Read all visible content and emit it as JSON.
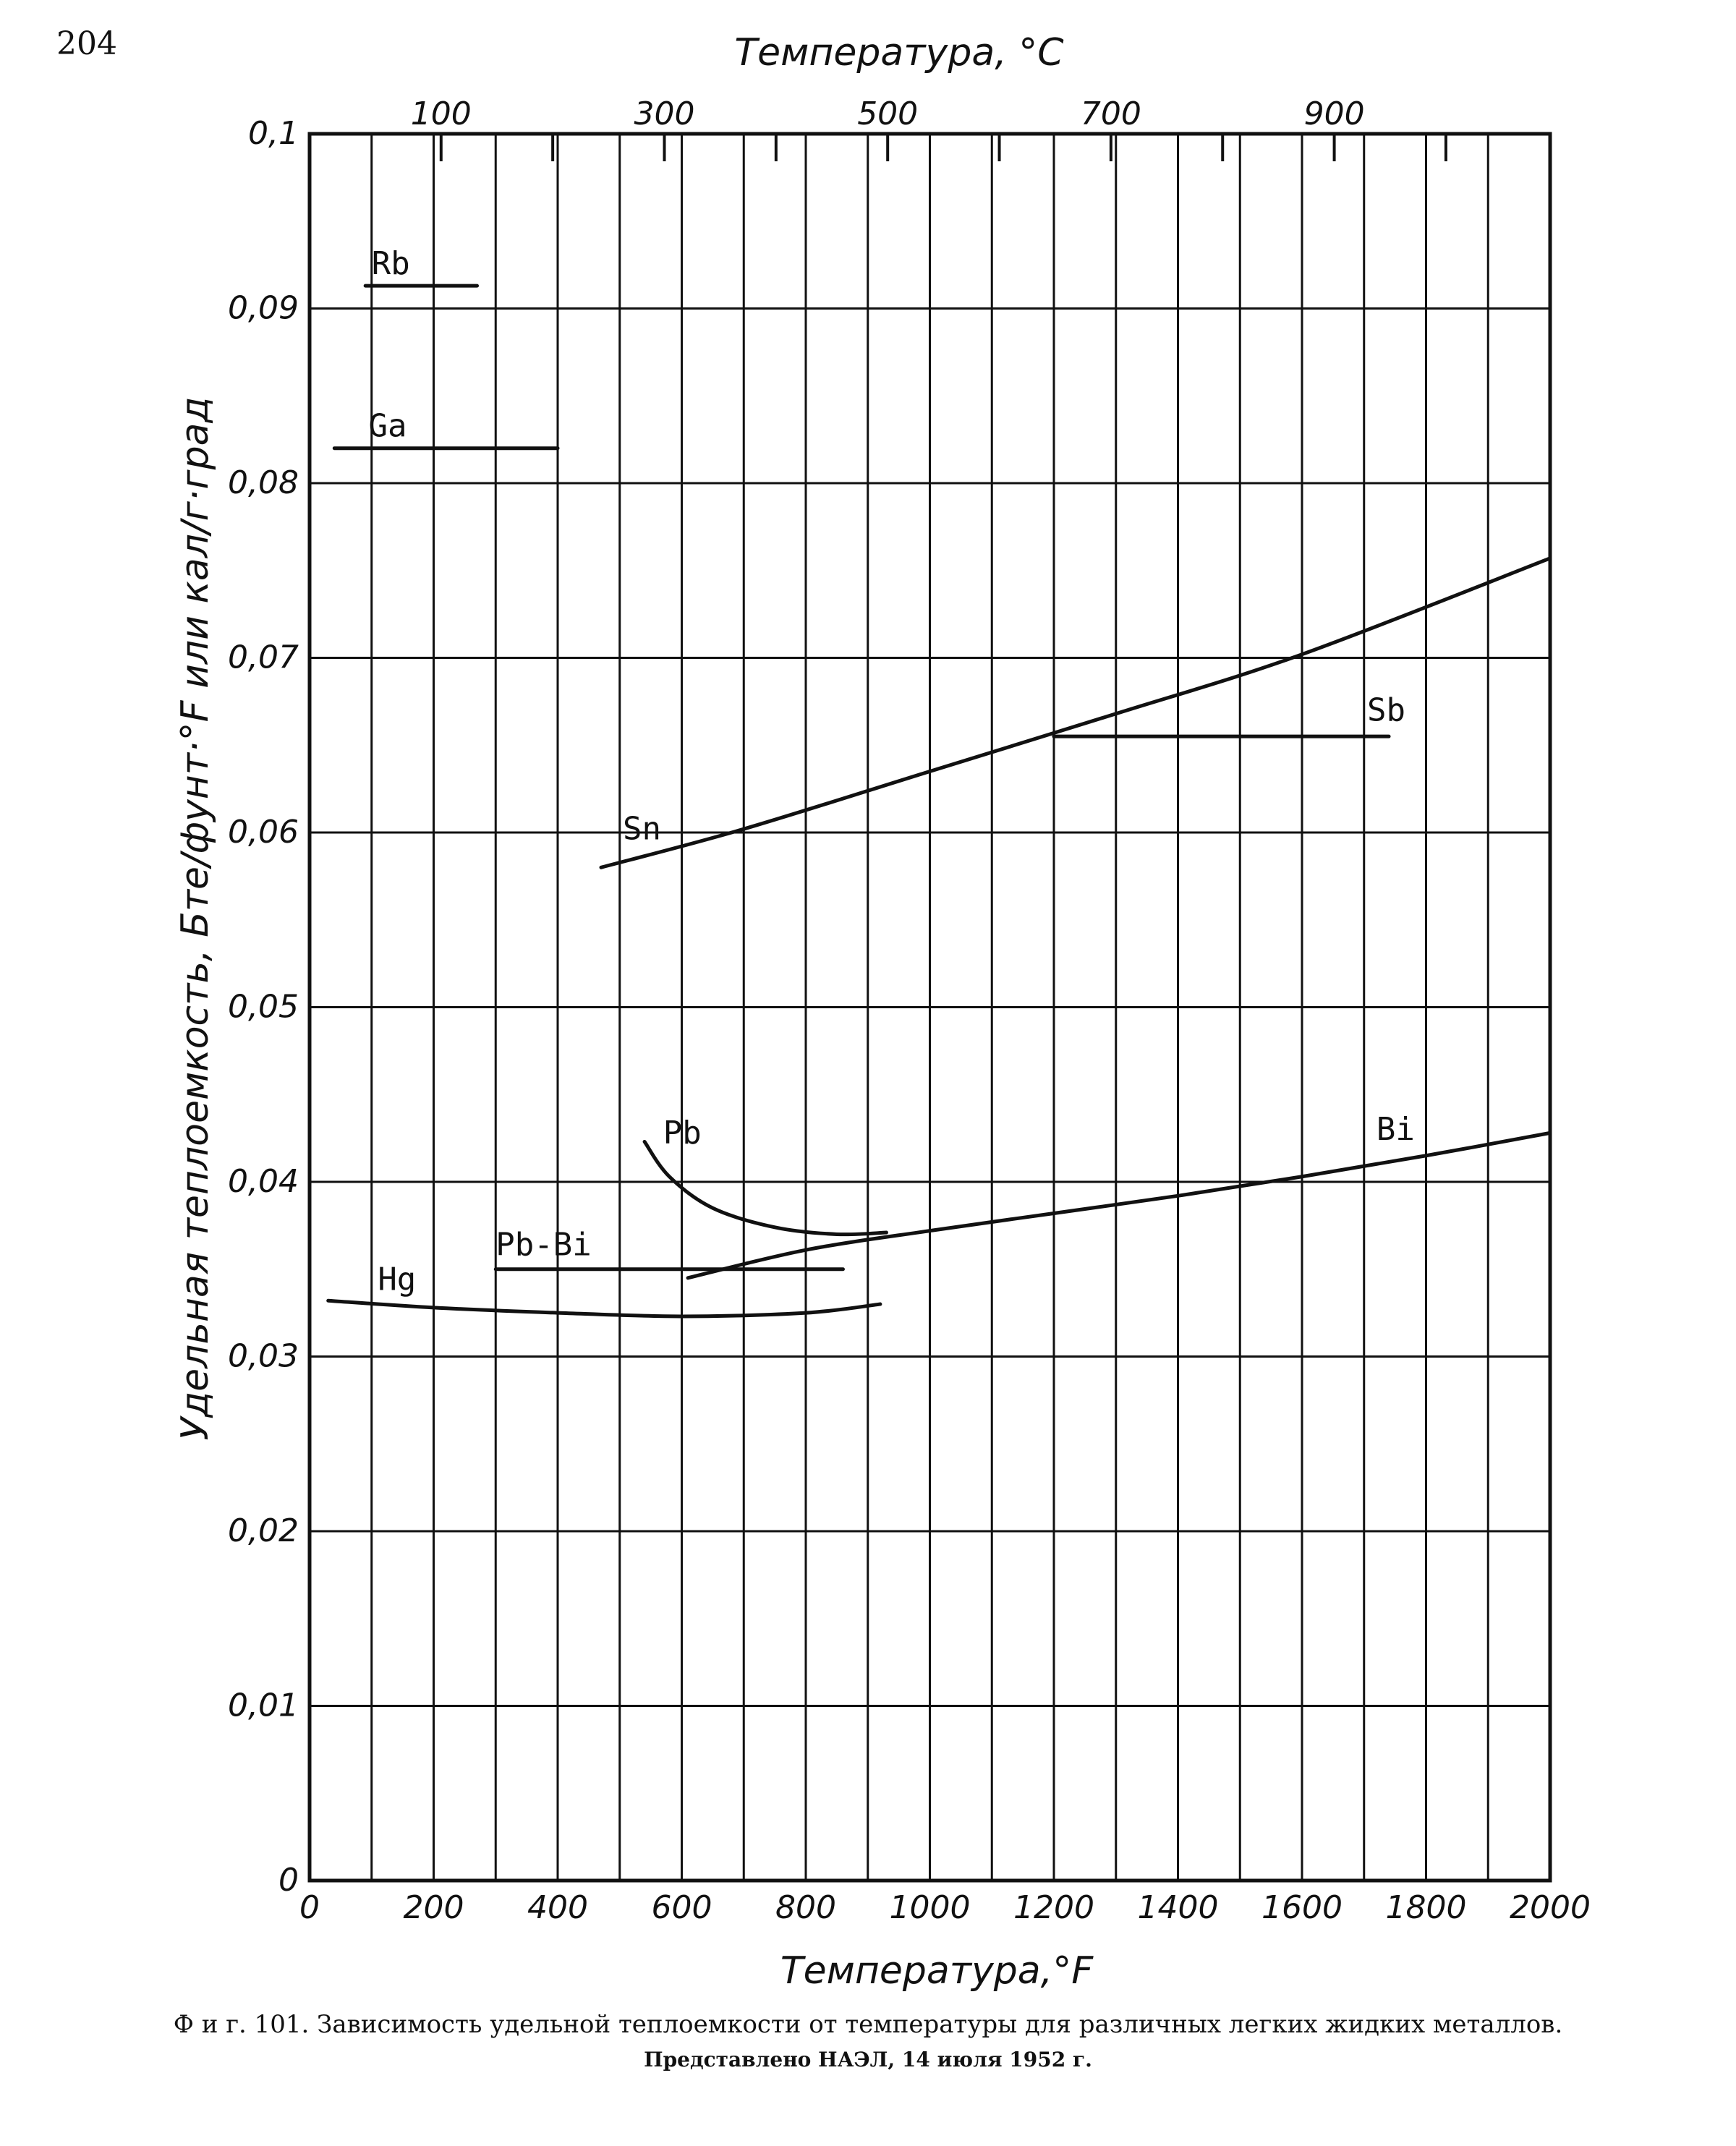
{
  "page": {
    "number": "204",
    "caption": "Ф и г.  101. Зависимость удельной теплоемкости от температуры для различных легких жидких металлов.",
    "caption_note": "Представлено НАЭЛ, 14 июля 1952 г."
  },
  "chart_data": {
    "type": "line",
    "xlabel": "Температура,°F",
    "x2label": "Температура, °C",
    "ylabel": "Удельная теплоемкость, Бте/фунт·°F или кал/г·град",
    "xlim": [
      0,
      2000
    ],
    "ylim": [
      0,
      0.1
    ],
    "x_ticks": [
      "0",
      "200",
      "400",
      "600",
      "800",
      "1000",
      "1200",
      "1400",
      "1600",
      "1800",
      "2000"
    ],
    "y_ticks": [
      "0",
      "0,01",
      "0,02",
      "0,03",
      "0,04",
      "0,05",
      "0,06",
      "0,07",
      "0,08",
      "0,09",
      "0,1"
    ],
    "x2_ticks": [
      "100",
      "300",
      "500",
      "700",
      "900"
    ],
    "grid": true,
    "series": [
      {
        "name": "Rb",
        "x": [
          90,
          270
        ],
        "y": [
          0.0913,
          0.0913
        ]
      },
      {
        "name": "Ga",
        "x": [
          40,
          400
        ],
        "y": [
          0.082,
          0.082
        ]
      },
      {
        "name": "Sn",
        "x": [
          470,
          700,
          1000,
          1300,
          1600,
          2000
        ],
        "y": [
          0.058,
          0.0602,
          0.0635,
          0.0668,
          0.0702,
          0.0757
        ]
      },
      {
        "name": "Sb",
        "x": [
          1200,
          1740
        ],
        "y": [
          0.0655,
          0.0655
        ]
      },
      {
        "name": "Pb",
        "x": [
          540,
          580,
          650,
          750,
          850,
          930
        ],
        "y": [
          0.0423,
          0.0403,
          0.0385,
          0.0374,
          0.037,
          0.0371
        ]
      },
      {
        "name": "Pb-Bi",
        "x": [
          300,
          860
        ],
        "y": [
          0.035,
          0.035
        ]
      },
      {
        "name": "Hg",
        "x": [
          30,
          200,
          400,
          600,
          800,
          920
        ],
        "y": [
          0.0332,
          0.0328,
          0.0325,
          0.0323,
          0.0325,
          0.033
        ]
      },
      {
        "name": "Bi",
        "x": [
          610,
          800,
          1000,
          1200,
          1400,
          1600,
          1800,
          2000
        ],
        "y": [
          0.0345,
          0.0361,
          0.0372,
          0.0382,
          0.0392,
          0.0403,
          0.0415,
          0.0428
        ]
      }
    ]
  }
}
